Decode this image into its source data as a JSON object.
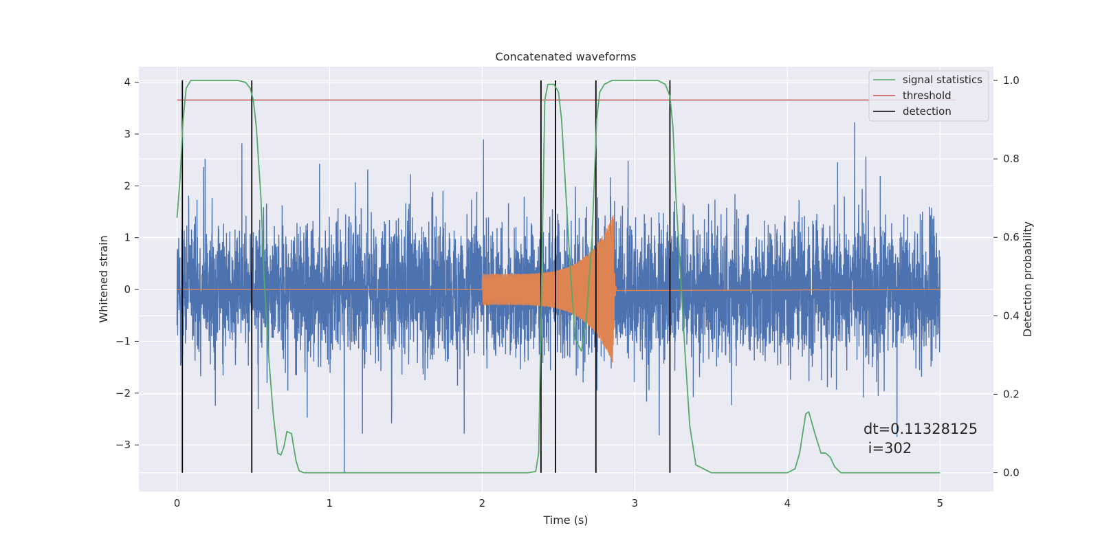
{
  "chart_data": {
    "type": "line",
    "title": "Concatenated waveforms",
    "xlabel": "Time (s)",
    "ylabel": "Whitened strain",
    "y2label": "Detection probability",
    "xlim": [
      -0.25,
      5.35
    ],
    "ylim": [
      -3.9,
      4.3
    ],
    "y2lim": [
      -0.048,
      1.035
    ],
    "x_ticks": [
      0,
      1,
      2,
      3,
      4,
      5
    ],
    "y_ticks": [
      -3,
      -2,
      -1,
      0,
      1,
      2,
      3,
      4
    ],
    "y2_ticks": [
      0.0,
      0.2,
      0.4,
      0.6,
      0.8,
      1.0
    ],
    "x_tick_labels": [
      "0",
      "1",
      "2",
      "3",
      "4",
      "5"
    ],
    "y_tick_labels": [
      "−3",
      "−2",
      "−1",
      "0",
      "1",
      "2",
      "3",
      "4"
    ],
    "y2_tick_labels": [
      "0.0",
      "0.2",
      "0.4",
      "0.6",
      "0.8",
      "1.0"
    ],
    "grid": true,
    "legend_position": "top-right",
    "legend": [
      {
        "label": "signal statistics",
        "color": "#55a868"
      },
      {
        "label": "threshold",
        "color": "#c44e52"
      },
      {
        "label": "detection",
        "color": "#000000"
      }
    ],
    "series": [
      {
        "name": "whitened strain (noise)",
        "axis": "left",
        "color": "#4c72b0",
        "x_range": [
          0,
          5
        ],
        "typical_amplitude": 0.9,
        "min": -3.55,
        "max": 3.7
      },
      {
        "name": "injected signal",
        "axis": "left",
        "color": "#dd8452",
        "x_range": [
          2.0,
          2.88
        ],
        "amplitude_start": 0.3,
        "amplitude_peak": 1.45,
        "peak_time": 2.86
      },
      {
        "name": "signal statistics",
        "axis": "right",
        "color": "#55a868",
        "x": [
          0.0,
          0.02,
          0.04,
          0.06,
          0.09,
          0.12,
          0.2,
          0.3,
          0.4,
          0.45,
          0.48,
          0.5,
          0.52,
          0.55,
          0.57,
          0.6,
          0.63,
          0.66,
          0.68,
          0.7,
          0.72,
          0.75,
          0.78,
          0.8,
          0.83,
          0.9,
          1.5,
          2.0,
          2.3,
          2.35,
          2.37,
          2.39,
          2.41,
          2.43,
          2.47,
          2.5,
          2.52,
          2.55,
          2.58,
          2.61,
          2.65,
          2.68,
          2.72,
          2.75,
          2.77,
          2.8,
          2.85,
          3.0,
          3.15,
          3.2,
          3.23,
          3.25,
          3.27,
          3.3,
          3.33,
          3.36,
          3.4,
          3.5,
          4.0,
          4.05,
          4.08,
          4.12,
          4.14,
          4.18,
          4.22,
          4.25,
          4.28,
          4.31,
          4.35,
          4.45,
          5.0
        ],
        "values": [
          0.65,
          0.75,
          0.9,
          0.98,
          1.0,
          1.0,
          1.0,
          1.0,
          1.0,
          0.995,
          0.98,
          0.95,
          0.88,
          0.7,
          0.5,
          0.3,
          0.15,
          0.05,
          0.045,
          0.065,
          0.105,
          0.1,
          0.03,
          0.005,
          0.0,
          0.0,
          0.0,
          0.0,
          0.0,
          0.003,
          0.05,
          0.5,
          0.95,
          0.99,
          0.99,
          0.97,
          0.9,
          0.7,
          0.5,
          0.34,
          0.31,
          0.38,
          0.6,
          0.9,
          0.97,
          0.99,
          1.0,
          1.0,
          1.0,
          0.99,
          0.96,
          0.88,
          0.7,
          0.5,
          0.3,
          0.12,
          0.02,
          0.0,
          0.0,
          0.01,
          0.05,
          0.15,
          0.155,
          0.1,
          0.05,
          0.05,
          0.04,
          0.015,
          0.0,
          0.0,
          0.0
        ]
      },
      {
        "name": "threshold",
        "axis": "right",
        "color": "#c44e52",
        "x": [
          0,
          5.1
        ],
        "values": [
          0.95,
          0.95
        ]
      }
    ],
    "detections": [
      0.035,
      0.49,
      2.385,
      2.48,
      2.745,
      3.23
    ],
    "annotations": [
      "dt=0.11328125",
      " i=302"
    ]
  }
}
